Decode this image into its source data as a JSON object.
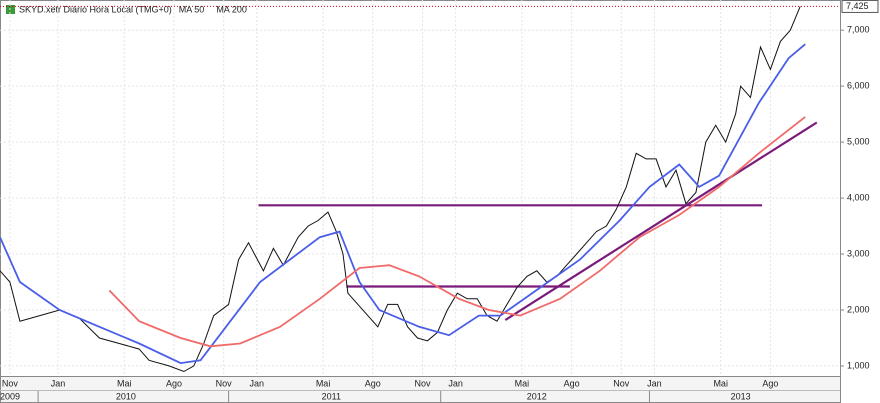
{
  "chart_data": {
    "type": "line",
    "title": "SKYD.xetr Diário Hora Local (TMG+0)",
    "xlim": [
      0,
      50.7
    ],
    "ylim": [
      820,
      7540
    ],
    "yticks": [
      {
        "value": 1000,
        "label": "1,000"
      },
      {
        "value": 2000,
        "label": "2,000"
      },
      {
        "value": 3000,
        "label": "3,000"
      },
      {
        "value": 4000,
        "label": "4,000"
      },
      {
        "value": 5000,
        "label": "5,000"
      },
      {
        "value": 6000,
        "label": "6,000"
      },
      {
        "value": 7000,
        "label": "7,000"
      }
    ],
    "xticks": [
      {
        "value": 0.6,
        "label": "Nov"
      },
      {
        "value": 3.5,
        "label": "Jan"
      },
      {
        "value": 7.5,
        "label": "Mai"
      },
      {
        "value": 10.5,
        "label": "Ago"
      },
      {
        "value": 13.5,
        "label": "Nov"
      },
      {
        "value": 15.5,
        "label": "Jan"
      },
      {
        "value": 19.5,
        "label": "Mai"
      },
      {
        "value": 22.5,
        "label": "Ago"
      },
      {
        "value": 25.5,
        "label": "Nov"
      },
      {
        "value": 27.5,
        "label": "Jan"
      },
      {
        "value": 31.5,
        "label": "Mai"
      },
      {
        "value": 34.5,
        "label": "Ago"
      },
      {
        "value": 37.5,
        "label": "Nov"
      },
      {
        "value": 39.5,
        "label": "Jan"
      },
      {
        "value": 43.5,
        "label": "Mai"
      },
      {
        "value": 46.5,
        "label": "Ago"
      }
    ],
    "year_ticks": [
      {
        "value": 0.6,
        "label": "2009"
      },
      {
        "value": 7.6,
        "label": "2010"
      },
      {
        "value": 20.0,
        "label": "2011"
      },
      {
        "value": 32.4,
        "label": "2012"
      },
      {
        "value": 44.7,
        "label": "2013"
      }
    ],
    "year_breaks": [
      2.3,
      13.8,
      26.6,
      39.2
    ],
    "grid": true,
    "series": [
      {
        "name": "SKYD.xetr",
        "color": "#111111",
        "x": [
          0,
          0.6,
          1.2,
          2.4,
          3.6,
          4.8,
          6.0,
          7.2,
          8.4,
          9.0,
          10.2,
          11.1,
          11.7,
          12.3,
          12.9,
          13.8,
          14.4,
          15.0,
          15.9,
          16.5,
          17.1,
          18.0,
          18.6,
          19.2,
          19.8,
          20.3,
          20.7,
          21.0,
          21.6,
          22.2,
          22.8,
          23.4,
          24.0,
          24.6,
          25.2,
          25.8,
          26.4,
          27.0,
          27.6,
          28.2,
          28.8,
          29.4,
          30.0,
          30.6,
          31.2,
          31.8,
          32.4,
          33.0,
          33.6,
          34.2,
          34.8,
          35.4,
          36.0,
          36.6,
          37.2,
          37.8,
          38.4,
          39.0,
          39.6,
          40.2,
          40.8,
          41.4,
          42.0,
          42.6,
          43.2,
          43.8,
          44.4,
          44.7,
          45.3,
          45.9,
          46.5,
          47.1,
          47.7,
          48.3
        ],
        "values": [
          2700,
          2500,
          1800,
          1900,
          2000,
          1850,
          1500,
          1400,
          1300,
          1100,
          1000,
          900,
          1000,
          1400,
          1900,
          2100,
          2900,
          3200,
          2700,
          3100,
          2800,
          3300,
          3500,
          3600,
          3750,
          3400,
          3000,
          2300,
          2100,
          1900,
          1700,
          2100,
          2100,
          1700,
          1500,
          1450,
          1600,
          2000,
          2300,
          2200,
          2200,
          1900,
          1800,
          2100,
          2400,
          2600,
          2700,
          2500,
          2600,
          2800,
          3000,
          3200,
          3400,
          3500,
          3800,
          4200,
          4800,
          4700,
          4700,
          4200,
          4500,
          3900,
          4100,
          5000,
          5300,
          5000,
          5500,
          6000,
          5800,
          6700,
          6300,
          6800,
          7000,
          7425
        ]
      },
      {
        "name": "MA 50",
        "color": "#4a5ee8",
        "x": [
          0,
          1.2,
          3.6,
          6.0,
          8.4,
          10.9,
          12.1,
          13.9,
          15.7,
          17.5,
          19.3,
          20.5,
          21.7,
          22.9,
          25.3,
          27.1,
          28.9,
          30.2,
          32.6,
          35.0,
          37.4,
          39.2,
          41.0,
          42.2,
          43.4,
          45.8,
          47.6,
          48.6
        ],
        "values": [
          3300,
          2500,
          2000,
          1700,
          1400,
          1050,
          1100,
          1800,
          2500,
          2900,
          3300,
          3400,
          2500,
          2000,
          1700,
          1550,
          1900,
          1900,
          2400,
          2900,
          3600,
          4200,
          4600,
          4200,
          4400,
          5700,
          6500,
          6750
        ]
      },
      {
        "name": "MA 200",
        "color": "#f06a6a",
        "x": [
          6.6,
          8.4,
          10.9,
          12.7,
          14.5,
          16.9,
          19.3,
          21.7,
          23.5,
          25.3,
          27.7,
          29.5,
          31.4,
          33.8,
          36.2,
          38.6,
          41.0,
          43.4,
          45.8,
          48.6
        ],
        "values": [
          2350,
          1800,
          1500,
          1350,
          1400,
          1700,
          2200,
          2750,
          2800,
          2600,
          2200,
          2000,
          1900,
          2200,
          2700,
          3300,
          3700,
          4200,
          4800,
          5450
        ]
      }
    ],
    "trend_lines": {
      "color": "#7a1a7a",
      "lines": [
        {
          "x": [
            15.6,
            46.0
          ],
          "values": [
            3870,
            3870
          ]
        },
        {
          "x": [
            20.9,
            34.4
          ],
          "values": [
            2420,
            2420
          ]
        },
        {
          "x": [
            30.5,
            49.3
          ],
          "values": [
            1820,
            5350
          ]
        }
      ]
    },
    "last_price": {
      "value": 7425,
      "label": "7,425",
      "color": "#cc0000"
    }
  }
}
